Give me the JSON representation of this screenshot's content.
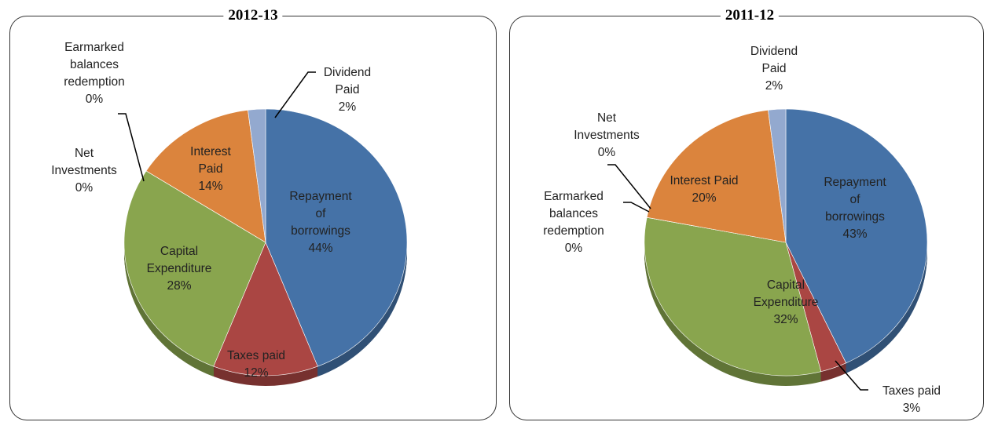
{
  "chart_data": [
    {
      "type": "pie",
      "title": "2012-13",
      "categories": [
        "Repayment of borrowings",
        "Taxes paid",
        "Capital Expenditure",
        "Net Investments",
        "Earmarked balances redemption",
        "Interest Paid",
        "Dividend Paid"
      ],
      "values": [
        44,
        12,
        28,
        0,
        0,
        14,
        2
      ],
      "value_labels": [
        "44%",
        "12%",
        "28%",
        "0%",
        "0%",
        "14%",
        "2%"
      ],
      "colors": [
        "#4572a7",
        "#aa4643",
        "#89a54e",
        "#80699b",
        "#3d96ae",
        "#db843d",
        "#93a9cf"
      ]
    },
    {
      "type": "pie",
      "title": "2011-12",
      "categories": [
        "Repayment of borrowings",
        "Taxes paid",
        "Capital Expenditure",
        "Earmarked balances redemption",
        "Net Investments",
        "Interest Paid",
        "Dividend Paid"
      ],
      "values": [
        43,
        3,
        32,
        0,
        0,
        20,
        2
      ],
      "value_labels": [
        "43%",
        "3%",
        "32%",
        "0%",
        "0%",
        "20%",
        "2%"
      ],
      "colors": [
        "#4572a7",
        "#aa4643",
        "#89a54e",
        "#3d96ae",
        "#80699b",
        "#db843d",
        "#93a9cf"
      ]
    }
  ]
}
